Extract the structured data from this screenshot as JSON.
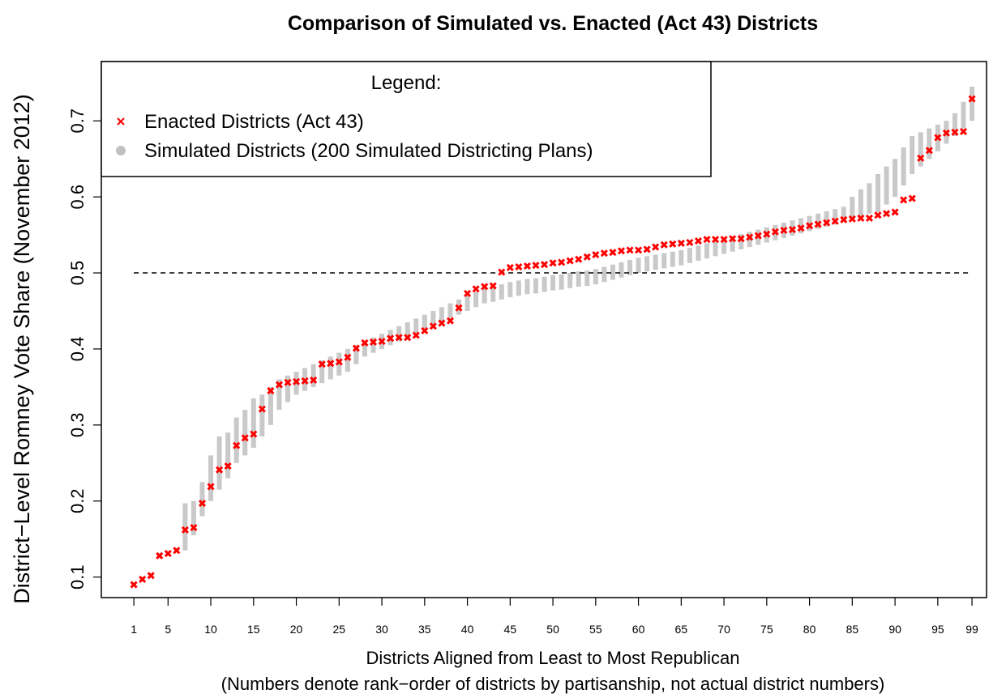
{
  "chart_data": {
    "type": "scatter",
    "title": "Comparison of Simulated vs. Enacted (Act 43) Districts",
    "x_label": "Districts Aligned from Least to Most Republican",
    "x_sublabel": "(Numbers denote rank−order of districts by partisanship, not actual district numbers)",
    "y_label": "District−Level Romney Vote Share (November 2012)",
    "legend_title": "Legend:",
    "legend_position": "top-left",
    "hline": 0.5,
    "xlim": [
      -2.8,
      100.7
    ],
    "ylim": [
      0.073,
      0.778
    ],
    "xticks": [
      1,
      5,
      10,
      15,
      20,
      25,
      30,
      35,
      40,
      45,
      50,
      55,
      60,
      65,
      70,
      75,
      80,
      85,
      90,
      95,
      99
    ],
    "yticks": [
      0.1,
      0.2,
      0.3,
      0.4,
      0.5,
      0.6,
      0.7
    ],
    "x": [
      1,
      2,
      3,
      4,
      5,
      6,
      7,
      8,
      9,
      10,
      11,
      12,
      13,
      14,
      15,
      16,
      17,
      18,
      19,
      20,
      21,
      22,
      23,
      24,
      25,
      26,
      27,
      28,
      29,
      30,
      31,
      32,
      33,
      34,
      35,
      36,
      37,
      38,
      39,
      40,
      41,
      42,
      43,
      44,
      45,
      46,
      47,
      48,
      49,
      50,
      51,
      52,
      53,
      54,
      55,
      56,
      57,
      58,
      59,
      60,
      61,
      62,
      63,
      64,
      65,
      66,
      67,
      68,
      69,
      70,
      71,
      72,
      73,
      74,
      75,
      76,
      77,
      78,
      79,
      80,
      81,
      82,
      83,
      84,
      85,
      86,
      87,
      88,
      89,
      90,
      91,
      92,
      93,
      94,
      95,
      96,
      97,
      98,
      99
    ],
    "simulated": {
      "name": "Simulated Districts (200 Simulated Districting Plans)",
      "color": "#c0c0c0",
      "low": [
        0.088,
        0.095,
        0.1,
        0.126,
        0.129,
        0.133,
        0.135,
        0.155,
        0.18,
        0.2,
        0.215,
        0.23,
        0.25,
        0.26,
        0.27,
        0.285,
        0.3,
        0.32,
        0.33,
        0.34,
        0.345,
        0.35,
        0.355,
        0.36,
        0.365,
        0.37,
        0.38,
        0.39,
        0.395,
        0.4,
        0.405,
        0.41,
        0.415,
        0.42,
        0.425,
        0.43,
        0.435,
        0.44,
        0.445,
        0.45,
        0.455,
        0.46,
        0.462,
        0.465,
        0.468,
        0.47,
        0.472,
        0.473,
        0.475,
        0.477,
        0.478,
        0.48,
        0.482,
        0.483,
        0.485,
        0.488,
        0.491,
        0.494,
        0.497,
        0.5,
        0.502,
        0.504,
        0.506,
        0.508,
        0.51,
        0.513,
        0.516,
        0.519,
        0.522,
        0.525,
        0.528,
        0.531,
        0.534,
        0.537,
        0.54,
        0.543,
        0.546,
        0.549,
        0.552,
        0.555,
        0.558,
        0.561,
        0.564,
        0.567,
        0.57,
        0.575,
        0.578,
        0.58,
        0.59,
        0.6,
        0.615,
        0.63,
        0.64,
        0.65,
        0.66,
        0.67,
        0.68,
        0.69,
        0.7
      ],
      "high": [
        0.093,
        0.1,
        0.105,
        0.131,
        0.134,
        0.138,
        0.197,
        0.2,
        0.225,
        0.26,
        0.285,
        0.29,
        0.31,
        0.32,
        0.335,
        0.34,
        0.35,
        0.36,
        0.365,
        0.37,
        0.375,
        0.38,
        0.385,
        0.39,
        0.395,
        0.4,
        0.405,
        0.41,
        0.415,
        0.42,
        0.425,
        0.43,
        0.435,
        0.44,
        0.445,
        0.45,
        0.455,
        0.46,
        0.465,
        0.47,
        0.475,
        0.48,
        0.482,
        0.485,
        0.488,
        0.49,
        0.492,
        0.493,
        0.495,
        0.497,
        0.498,
        0.5,
        0.502,
        0.503,
        0.505,
        0.508,
        0.511,
        0.514,
        0.517,
        0.52,
        0.522,
        0.524,
        0.526,
        0.528,
        0.53,
        0.533,
        0.536,
        0.539,
        0.542,
        0.545,
        0.548,
        0.551,
        0.554,
        0.557,
        0.56,
        0.563,
        0.566,
        0.569,
        0.572,
        0.575,
        0.578,
        0.581,
        0.584,
        0.587,
        0.6,
        0.61,
        0.618,
        0.63,
        0.64,
        0.65,
        0.665,
        0.68,
        0.685,
        0.69,
        0.695,
        0.7,
        0.71,
        0.725,
        0.745
      ]
    },
    "enacted": {
      "name": "Enacted Districts (Act 43)",
      "color": "#ff0000",
      "values": [
        0.09,
        0.097,
        0.102,
        0.128,
        0.131,
        0.135,
        0.162,
        0.165,
        0.197,
        0.219,
        0.241,
        0.246,
        0.273,
        0.283,
        0.288,
        0.321,
        0.345,
        0.353,
        0.356,
        0.357,
        0.358,
        0.359,
        0.38,
        0.381,
        0.383,
        0.389,
        0.401,
        0.408,
        0.409,
        0.41,
        0.414,
        0.415,
        0.415,
        0.418,
        0.424,
        0.43,
        0.434,
        0.437,
        0.454,
        0.473,
        0.479,
        0.482,
        0.483,
        0.501,
        0.507,
        0.508,
        0.509,
        0.51,
        0.511,
        0.513,
        0.514,
        0.516,
        0.518,
        0.521,
        0.524,
        0.526,
        0.527,
        0.529,
        0.53,
        0.53,
        0.531,
        0.534,
        0.537,
        0.538,
        0.539,
        0.54,
        0.542,
        0.544,
        0.544,
        0.544,
        0.545,
        0.545,
        0.547,
        0.549,
        0.551,
        0.554,
        0.556,
        0.557,
        0.559,
        0.562,
        0.564,
        0.566,
        0.568,
        0.57,
        0.571,
        0.572,
        0.572,
        0.576,
        0.578,
        0.58,
        0.596,
        0.598,
        0.651,
        0.661,
        0.678,
        0.684,
        0.685,
        0.686,
        0.729
      ]
    }
  }
}
